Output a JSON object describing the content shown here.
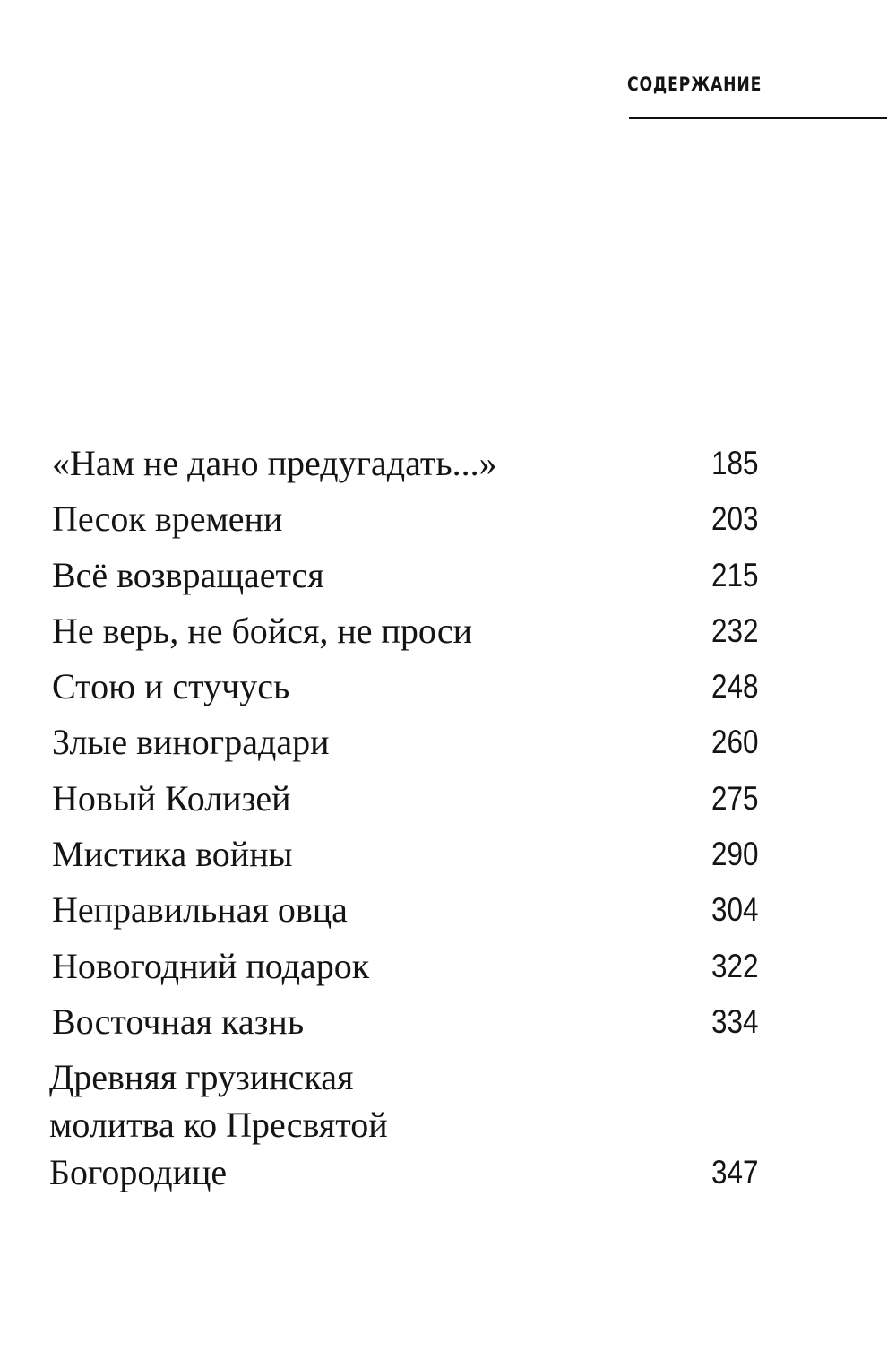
{
  "header": {
    "title": "СОДЕРЖАНИЕ"
  },
  "toc": [
    {
      "title": "«Нам не дано предугадать...»",
      "page": "185"
    },
    {
      "title": "Песок времени",
      "page": "203"
    },
    {
      "title": "Всё возвращается",
      "page": "215"
    },
    {
      "title": "Не верь, не бойся, не проси",
      "page": "232"
    },
    {
      "title": "Стою и стучусь",
      "page": "248"
    },
    {
      "title": "Злые виноградари",
      "page": "260"
    },
    {
      "title": "Новый Колизей",
      "page": "275"
    },
    {
      "title": "Мистика войны",
      "page": "290"
    },
    {
      "title": "Неправильная овца",
      "page": "304"
    },
    {
      "title": "Новогодний подарок",
      "page": "322"
    },
    {
      "title": "Восточная казнь",
      "page": "334"
    },
    {
      "title": "Древняя грузинская молитва ко Пресвятой Богородице",
      "page": "347"
    }
  ]
}
